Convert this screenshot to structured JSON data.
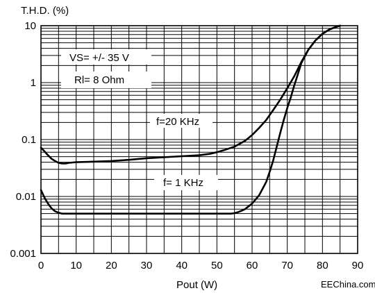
{
  "chart_data": {
    "type": "line",
    "ylabel": "T.H.D.  (%)",
    "xlabel": "Pout  (W)",
    "x_scale": "linear",
    "y_scale": "log",
    "xlim": [
      0,
      90
    ],
    "ylim": [
      0.001,
      10
    ],
    "grid": true,
    "x_ticks": [
      0,
      10,
      20,
      30,
      40,
      50,
      60,
      70,
      80,
      90
    ],
    "x_tick_labels": [
      "0",
      "10",
      "20",
      "30",
      "40",
      "50",
      "60",
      "70",
      "80",
      "90"
    ],
    "y_ticks": [
      0.001,
      0.01,
      0.1,
      1,
      10
    ],
    "y_tick_labels": [
      "0.001",
      "0.01",
      "0.1",
      "1",
      "10"
    ],
    "annotations": [
      "VS= +/- 35 V",
      "Rl= 8 Ohm",
      "f=20 KHz",
      "f= 1 KHz"
    ],
    "series": [
      {
        "name": "f=20 KHz",
        "x": [
          0,
          1,
          2,
          3,
          4,
          5,
          6,
          7,
          8,
          10,
          15,
          20,
          25,
          30,
          35,
          40,
          45,
          48,
          50,
          52,
          55,
          58,
          60,
          62,
          64,
          66,
          68,
          70,
          72,
          74,
          76,
          78,
          80,
          82,
          84,
          85
        ],
        "y": [
          0.072,
          0.062,
          0.053,
          0.046,
          0.042,
          0.039,
          0.038,
          0.038,
          0.039,
          0.04,
          0.041,
          0.042,
          0.044,
          0.047,
          0.049,
          0.051,
          0.053,
          0.056,
          0.06,
          0.065,
          0.075,
          0.095,
          0.12,
          0.16,
          0.22,
          0.33,
          0.5,
          0.8,
          1.3,
          2.3,
          3.8,
          5.5,
          7.2,
          8.6,
          9.6,
          10
        ]
      },
      {
        "name": "f= 1 KHz",
        "x": [
          0,
          1,
          2,
          3,
          4,
          5,
          6,
          8,
          10,
          20,
          30,
          40,
          50,
          52,
          54,
          55,
          56,
          57,
          58,
          60,
          62,
          64,
          65,
          66,
          67,
          68,
          69,
          70,
          71,
          72,
          73,
          74,
          76,
          78,
          80,
          82,
          84,
          85
        ],
        "y": [
          0.013,
          0.0095,
          0.0075,
          0.0062,
          0.0055,
          0.0052,
          0.005,
          0.005,
          0.005,
          0.005,
          0.005,
          0.005,
          0.005,
          0.005,
          0.005,
          0.0051,
          0.0053,
          0.0056,
          0.006,
          0.0075,
          0.0105,
          0.018,
          0.027,
          0.043,
          0.075,
          0.13,
          0.22,
          0.36,
          0.55,
          0.9,
          1.4,
          2.2,
          3.8,
          5.5,
          7.2,
          8.6,
          9.6,
          10
        ]
      }
    ]
  },
  "watermark": "EEChina.com",
  "colors": {
    "line": "#000000",
    "grid": "#000000",
    "background": "#ffffff"
  }
}
